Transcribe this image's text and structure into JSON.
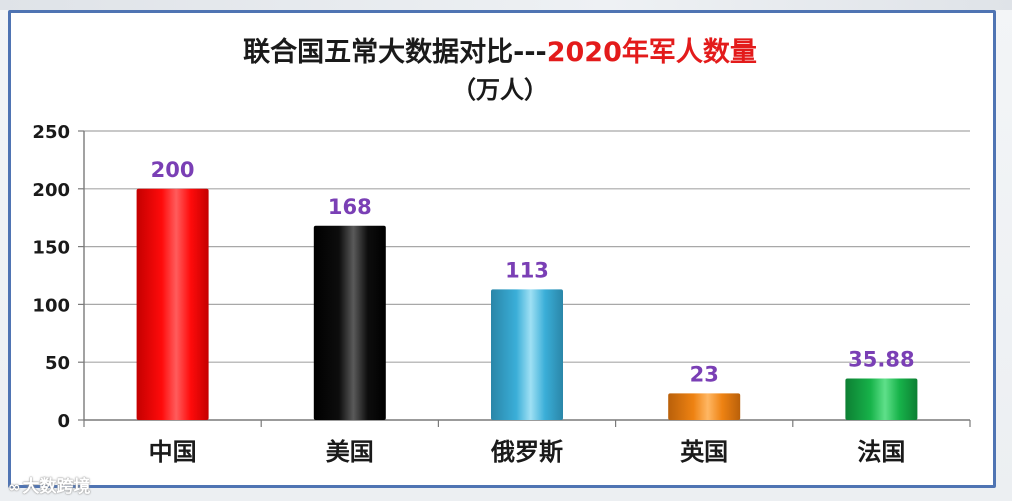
{
  "title": {
    "main": "联合国五常大数据对比---",
    "accent": "2020年军人数量",
    "unit": "（万人）"
  },
  "colors": {
    "frame_border": "#4f74b3",
    "title_accent": "#e31b1b",
    "data_label": "#7a3fb5"
  },
  "chart_data": {
    "type": "bar",
    "title": "联合国五常大数据对比---2020年军人数量",
    "subtitle": "（万人）",
    "categories": [
      "中国",
      "美国",
      "俄罗斯",
      "英国",
      "法国"
    ],
    "values": [
      200,
      168,
      113,
      23,
      35.88
    ],
    "value_labels": [
      "200",
      "168",
      "113",
      "23",
      "35.88"
    ],
    "bar_colors": [
      "#ff0b0b",
      "#0d0d0d",
      "#3aaed8",
      "#ee8212",
      "#17b34a"
    ],
    "bar_colors_dark": [
      "#c40000",
      "#000000",
      "#2a86a8",
      "#b9600a",
      "#0d7f33"
    ],
    "bar_colors_light": [
      "#ff5c5c",
      "#5a5a5a",
      "#9fe0f4",
      "#ffb763",
      "#5fe08a"
    ],
    "ylim": [
      0,
      250
    ],
    "yticks": [
      0,
      50,
      100,
      150,
      200,
      250
    ],
    "grid": true,
    "legend": "none"
  },
  "watermark": {
    "icon": "∞",
    "text": "大数跨境"
  }
}
